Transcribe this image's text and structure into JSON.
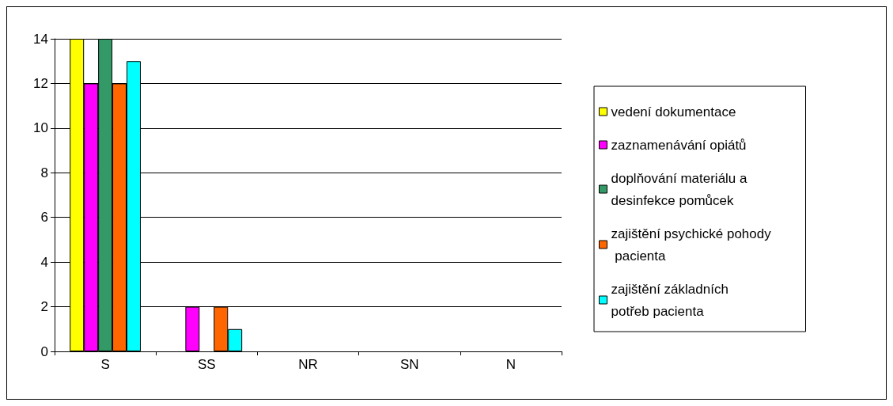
{
  "chart_data": {
    "type": "bar",
    "categories": [
      "S",
      "SS",
      "NR",
      "SN",
      "N"
    ],
    "series": [
      {
        "name": "vedení dokumentace",
        "color": "#ffff00",
        "values": [
          14,
          0,
          0,
          0,
          0
        ]
      },
      {
        "name": "zaznamenávání opiátů",
        "color": "#ff00ff",
        "values": [
          12,
          2,
          0,
          0,
          0
        ]
      },
      {
        "name": "doplňování materiálu a desinfekce pomůcek",
        "color": "#339966",
        "values": [
          14,
          0,
          0,
          0,
          0
        ]
      },
      {
        "name": "zajištění psychické pohody pacienta",
        "color": "#ff6600",
        "values": [
          12,
          2,
          0,
          0,
          0
        ]
      },
      {
        "name": "zajištění základních potřeb pacienta",
        "color": "#00ffff",
        "values": [
          13,
          1,
          0,
          0,
          0
        ]
      }
    ],
    "ylim": [
      0,
      14
    ],
    "yticks": [
      0,
      2,
      4,
      6,
      8,
      10,
      12,
      14
    ],
    "grid": "y",
    "legend": "right"
  }
}
